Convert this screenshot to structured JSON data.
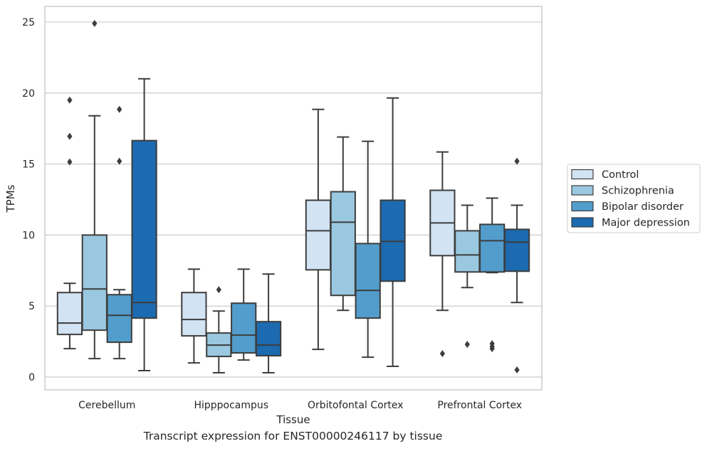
{
  "chart_data": {
    "type": "boxplot",
    "title": "Transcript expression for ENST00000246117 by tissue",
    "xlabel": "Tissue",
    "ylabel": "TPMs",
    "ylim": [
      -0.9,
      26.1
    ],
    "yticks": [
      0,
      5,
      10,
      15,
      20,
      25
    ],
    "grid": "horizontal",
    "legend_position": "right",
    "categories": [
      "Cerebellum",
      "Hipppocampus",
      "Orbitofontal Cortex",
      "Prefrontal Cortex"
    ],
    "series": [
      {
        "name": "Control",
        "color": "#d2e3f3",
        "boxes": [
          {
            "whisker_low": 2.0,
            "q1": 3.0,
            "median": 3.8,
            "q3": 5.95,
            "whisker_high": 6.6,
            "outliers": [
              19.5,
              16.95,
              15.15
            ]
          },
          {
            "whisker_low": 1.0,
            "q1": 2.9,
            "median": 4.05,
            "q3": 5.95,
            "whisker_high": 7.6,
            "outliers": []
          },
          {
            "whisker_low": 1.95,
            "q1": 7.55,
            "median": 10.3,
            "q3": 12.45,
            "whisker_high": 18.85,
            "outliers": []
          },
          {
            "whisker_low": 4.7,
            "q1": 8.55,
            "median": 10.85,
            "q3": 13.15,
            "whisker_high": 15.85,
            "outliers": [
              1.65
            ]
          }
        ]
      },
      {
        "name": "Schizophrenia",
        "color": "#9ac8e0",
        "boxes": [
          {
            "whisker_low": 1.3,
            "q1": 3.3,
            "median": 6.2,
            "q3": 10.0,
            "whisker_high": 18.4,
            "outliers": [
              24.9
            ]
          },
          {
            "whisker_low": 0.3,
            "q1": 1.45,
            "median": 2.25,
            "q3": 3.1,
            "whisker_high": 4.65,
            "outliers": [
              6.15
            ]
          },
          {
            "whisker_low": 4.7,
            "q1": 5.75,
            "median": 10.9,
            "q3": 13.05,
            "whisker_high": 16.9,
            "outliers": []
          },
          {
            "whisker_low": 6.3,
            "q1": 7.4,
            "median": 8.6,
            "q3": 10.3,
            "whisker_high": 12.1,
            "outliers": [
              2.3
            ]
          }
        ]
      },
      {
        "name": "Bipolar disorder",
        "color": "#529dcc",
        "boxes": [
          {
            "whisker_low": 1.3,
            "q1": 2.45,
            "median": 4.35,
            "q3": 5.8,
            "whisker_high": 6.15,
            "outliers": [
              18.85,
              15.2
            ]
          },
          {
            "whisker_low": 1.2,
            "q1": 1.7,
            "median": 2.95,
            "q3": 5.2,
            "whisker_high": 7.6,
            "outliers": []
          },
          {
            "whisker_low": 1.4,
            "q1": 4.15,
            "median": 6.1,
            "q3": 9.4,
            "whisker_high": 16.6,
            "outliers": []
          },
          {
            "whisker_low": 7.35,
            "q1": 7.4,
            "median": 9.6,
            "q3": 10.75,
            "whisker_high": 12.6,
            "outliers": [
              2.35,
              2.15,
              2.0
            ]
          }
        ]
      },
      {
        "name": "Major depression",
        "color": "#1c6aaf",
        "boxes": [
          {
            "whisker_low": 0.45,
            "q1": 4.15,
            "median": 5.25,
            "q3": 16.65,
            "whisker_high": 21.0,
            "outliers": []
          },
          {
            "whisker_low": 0.3,
            "q1": 1.5,
            "median": 2.25,
            "q3": 3.9,
            "whisker_high": 7.25,
            "outliers": []
          },
          {
            "whisker_low": 0.75,
            "q1": 6.75,
            "median": 9.55,
            "q3": 12.45,
            "whisker_high": 19.65,
            "outliers": []
          },
          {
            "whisker_low": 5.25,
            "q1": 7.45,
            "median": 9.5,
            "q3": 10.4,
            "whisker_high": 12.1,
            "outliers": [
              15.2,
              0.5
            ]
          }
        ]
      }
    ]
  }
}
